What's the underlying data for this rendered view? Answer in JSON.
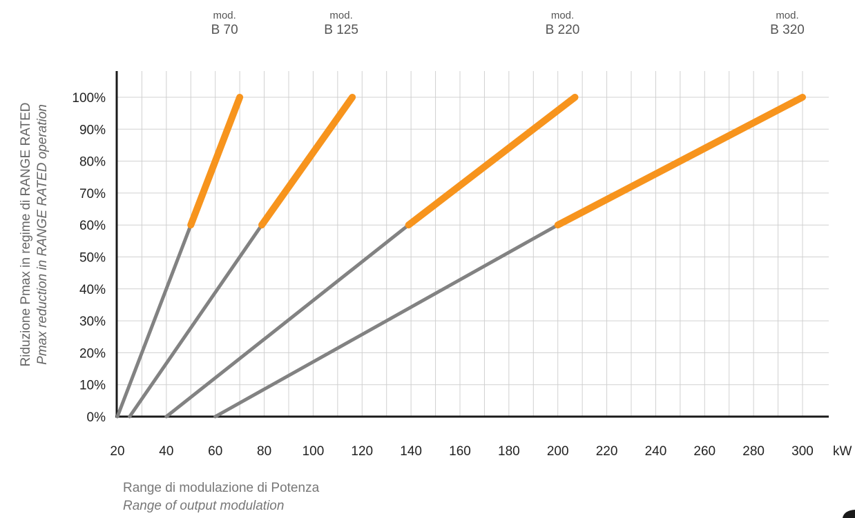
{
  "chart_data": {
    "type": "line",
    "title": "",
    "xlabel": "Range di modulazione di Potenza",
    "xlabel_en": "Range of output modulation",
    "ylabel": "Riduzione Pmax in regime di RANGE RATED",
    "ylabel_en": "Pmax reduction in RANGE RATED operation",
    "x_unit": "kW",
    "xlim": [
      20,
      307
    ],
    "ylim": [
      0,
      100
    ],
    "x_ticks": [
      20,
      40,
      60,
      80,
      100,
      120,
      140,
      160,
      180,
      200,
      220,
      240,
      260,
      280,
      300
    ],
    "y_ticks": [
      0,
      10,
      20,
      30,
      40,
      50,
      60,
      70,
      80,
      90,
      100
    ],
    "y_tick_labels": [
      "0%",
      "10%",
      "20%",
      "30%",
      "40%",
      "50%",
      "60%",
      "70%",
      "80%",
      "90%",
      "100%"
    ],
    "x_tick_labels": [
      "20",
      "40",
      "60",
      "80",
      "100",
      "120",
      "140",
      "160",
      "180",
      "200",
      "220",
      "240",
      "260",
      "280",
      "300"
    ],
    "grid": true,
    "colors": {
      "modulation": "#828282",
      "rated": "#f7941d",
      "grid": "#d0d0d0",
      "axis": "#1a1a1a"
    },
    "series": [
      {
        "name": "mod.",
        "model": "B 70",
        "label_x": 70,
        "points": [
          [
            20,
            0
          ],
          [
            50,
            60
          ],
          [
            70,
            100
          ]
        ]
      },
      {
        "name": "mod.",
        "model": "B 125",
        "label_x": 116,
        "points": [
          [
            25,
            0
          ],
          [
            79,
            60
          ],
          [
            116,
            100
          ]
        ]
      },
      {
        "name": "mod.",
        "model": "B 220",
        "label_x": 207,
        "points": [
          [
            40,
            0
          ],
          [
            139,
            60
          ],
          [
            207,
            100
          ]
        ]
      },
      {
        "name": "mod.",
        "model": "B 320",
        "label_x": 300,
        "points": [
          [
            60,
            0
          ],
          [
            200,
            60
          ],
          [
            300,
            100
          ]
        ]
      }
    ]
  }
}
